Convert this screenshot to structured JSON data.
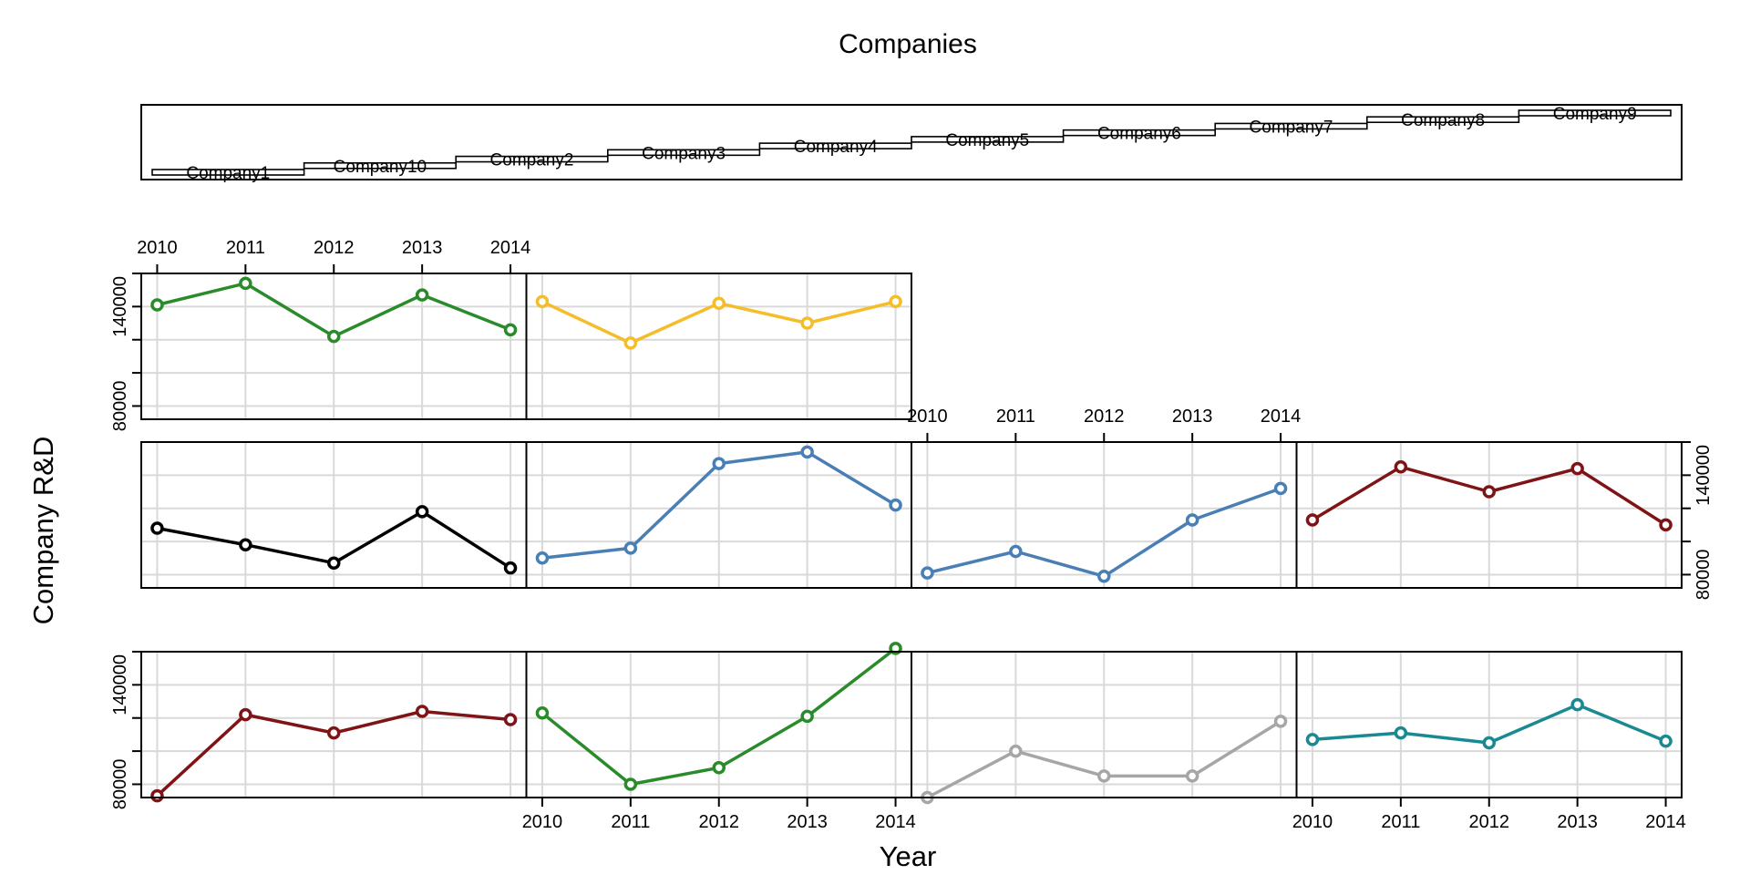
{
  "chart_data": {
    "type": "line",
    "title": "Companies",
    "xlabel": "Year",
    "ylabel": "Company R&D",
    "x": [
      2010,
      2011,
      2012,
      2013,
      2014
    ],
    "x_tick_labels": [
      "2010",
      "2011",
      "2012",
      "2013",
      "2014"
    ],
    "y_tick_labels": [
      "80000",
      "140000"
    ],
    "ylim": [
      72000,
      160000
    ],
    "y_ticks": [
      80000,
      100000,
      120000,
      140000,
      160000
    ],
    "grid": true,
    "legend": "stacked strip of company names across the top",
    "legend_labels": [
      "Company1",
      "Company10",
      "Company2",
      "Company3",
      "Company4",
      "Company5",
      "Company6",
      "Company7",
      "Company8",
      "Company9"
    ],
    "series": [
      {
        "name": "Company1",
        "color": "#7f1416",
        "values": [
          73000,
          122000,
          111000,
          124000,
          119000
        ]
      },
      {
        "name": "Company10",
        "color": "#2a8b2a",
        "values": [
          123000,
          80000,
          90000,
          121000,
          162000
        ]
      },
      {
        "name": "Company2",
        "color": "#a6a6a6",
        "values": [
          72000,
          100000,
          85000,
          85000,
          118000
        ]
      },
      {
        "name": "Company3",
        "color": "#1a8a92",
        "values": [
          107000,
          111000,
          105000,
          128000,
          106000
        ]
      },
      {
        "name": "Company4",
        "color": "#000000",
        "values": [
          108000,
          98000,
          87000,
          118000,
          84000
        ]
      },
      {
        "name": "Company5",
        "color": "#4a7fb5",
        "values": [
          90000,
          96000,
          147000,
          154000,
          122000
        ]
      },
      {
        "name": "Company6",
        "color": "#4a7fb5",
        "values": [
          81000,
          94000,
          79000,
          113000,
          132000
        ]
      },
      {
        "name": "Company7",
        "color": "#7f1416",
        "values": [
          113000,
          145000,
          130000,
          144000,
          110000
        ]
      },
      {
        "name": "Company8",
        "color": "#2a8b2a",
        "values": [
          141000,
          154000,
          122000,
          147000,
          126000
        ]
      },
      {
        "name": "Company9",
        "color": "#f5bd2a",
        "values": [
          143000,
          118000,
          142000,
          130000,
          143000
        ]
      }
    ]
  }
}
